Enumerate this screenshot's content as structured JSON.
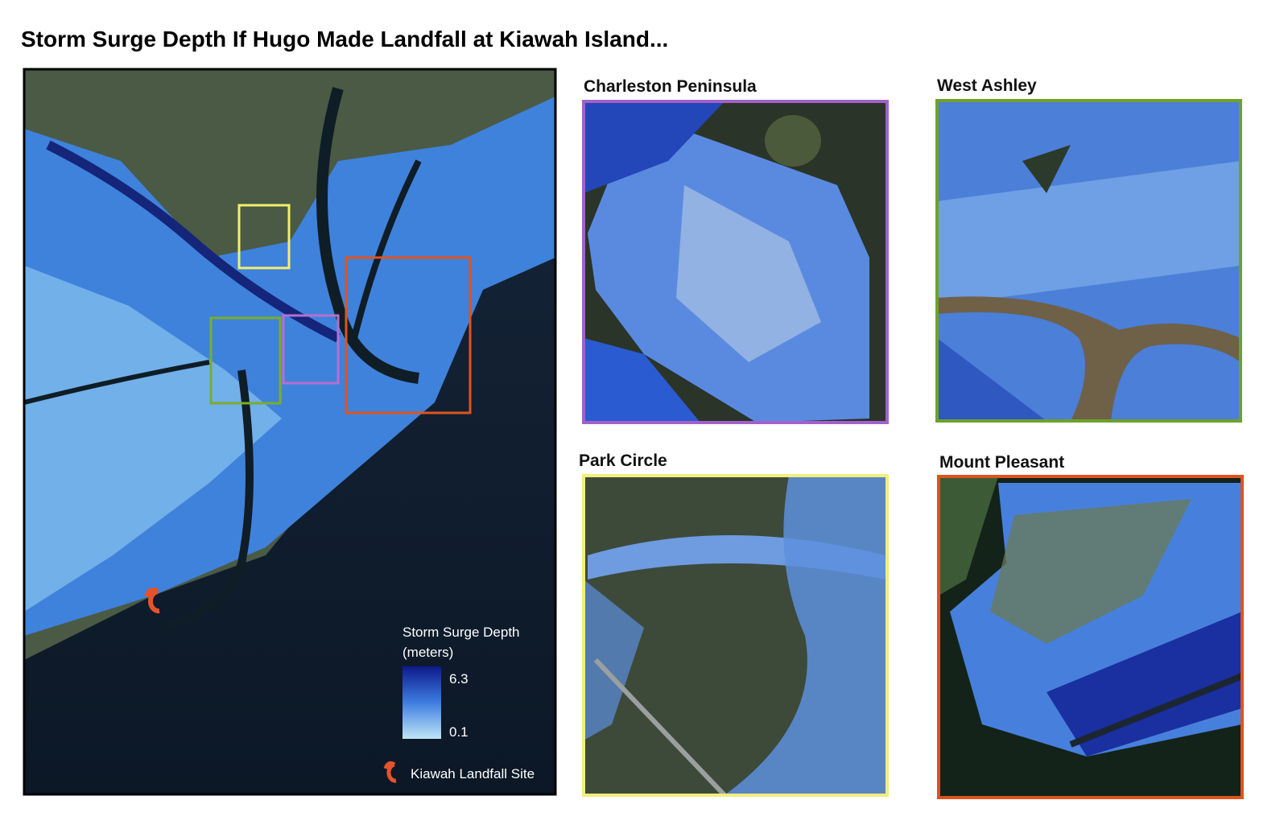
{
  "title": "Storm Surge Depth If Hugo Made Landfall at Kiawah Island...",
  "main_map": {
    "legend": {
      "title": "Storm Surge Depth",
      "unit": "(meters)",
      "max": 6.3,
      "min": 0.1,
      "marker_label": "Kiawah Landfall Site"
    }
  },
  "insets": [
    {
      "label": "Charleston Peninsula"
    },
    {
      "label": "West Ashley"
    },
    {
      "label": "Park Circle"
    },
    {
      "label": "Mount Pleasant"
    }
  ]
}
